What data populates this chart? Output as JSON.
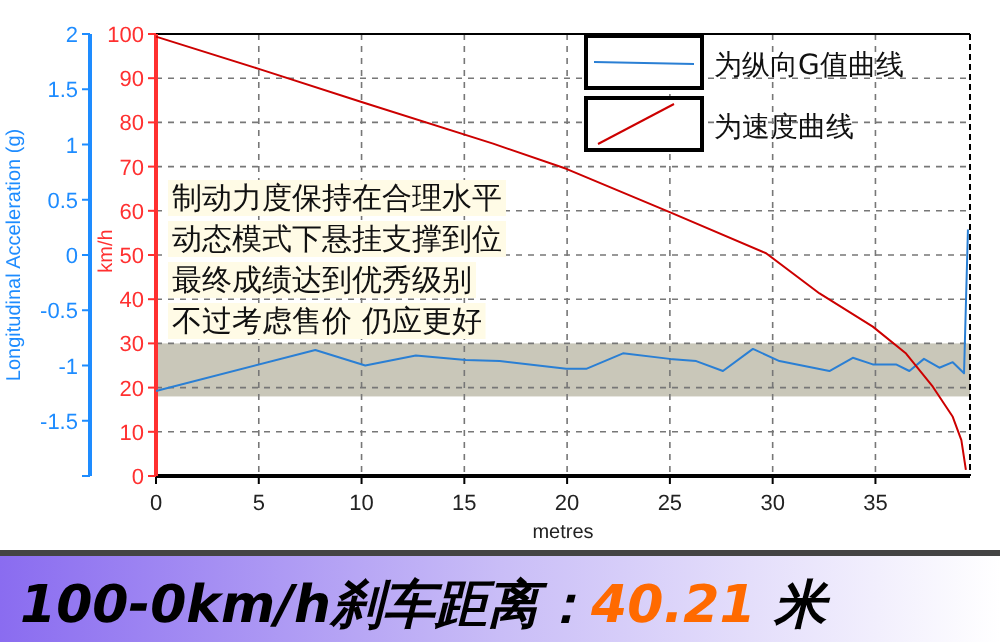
{
  "chart_data": {
    "type": "line",
    "title": "100-0km/h刹车距离：40.21 米",
    "xlabel": "metres",
    "ylabel": "km/h",
    "y2label": "Longitudinal Acceleration (g)",
    "annotations": [
      "制动力度保持在合理水平",
      "动态模式下悬挂支撑到位",
      "最终成绩达到优秀级别",
      "不过考虑售价 仍应更好"
    ],
    "series": [
      {
        "name": "为纵向G值曲线",
        "color": "#2a7fd4",
        "axis": "y2",
        "x": [
          0,
          7.75,
          10.18,
          12.64,
          15.07,
          16.72,
          19.96,
          20.93,
          22.72,
          24.99,
          26.28,
          27.58,
          29.04,
          30.33,
          32.76,
          33.9,
          34.87,
          36.0,
          36.65,
          37.36,
          38.11,
          38.76,
          39.31,
          39.5
        ],
        "values": [
          -1.23,
          -0.86,
          -1.0,
          -0.91,
          -0.95,
          -0.96,
          -1.03,
          -1.03,
          -0.89,
          -0.94,
          -0.96,
          -1.05,
          -0.85,
          -0.96,
          -1.05,
          -0.93,
          -0.99,
          -0.99,
          -1.05,
          -0.94,
          -1.02,
          -0.97,
          -1.07,
          0.23
        ]
      },
      {
        "name": "为速度曲线",
        "color": "#cc0000",
        "x": [
          0,
          5,
          10,
          16.4,
          19.96,
          24.99,
          29.68,
          32.28,
          34.87,
          36.49,
          37.79,
          38.76,
          39.18,
          39.4
        ],
        "values": [
          99.4,
          92.1,
          84.6,
          75.2,
          69.5,
          59.7,
          50.4,
          41.3,
          33.8,
          27.7,
          20.2,
          13.4,
          8.1,
          1.4
        ]
      }
    ],
    "xlim": [
      0,
      39.6
    ],
    "xticks": [
      0,
      5,
      10,
      15,
      20,
      25,
      30,
      35
    ],
    "ylim": [
      0,
      100
    ],
    "yticks": [
      0,
      10,
      20,
      30,
      40,
      50,
      60,
      70,
      80,
      90,
      100
    ],
    "y2lim": [
      -2,
      2
    ],
    "y2ticks": [
      {
        "value": -2,
        "label": null
      },
      -1.5,
      -1,
      -0.5,
      0,
      0.5,
      1,
      1.5,
      2
    ],
    "bands": [
      {
        "axis": "y",
        "from": 18,
        "to": 30,
        "color": "#c9c7b9"
      }
    ],
    "grid": true,
    "legend": "top right",
    "line_style": "solid",
    "marker": "none"
  }
}
